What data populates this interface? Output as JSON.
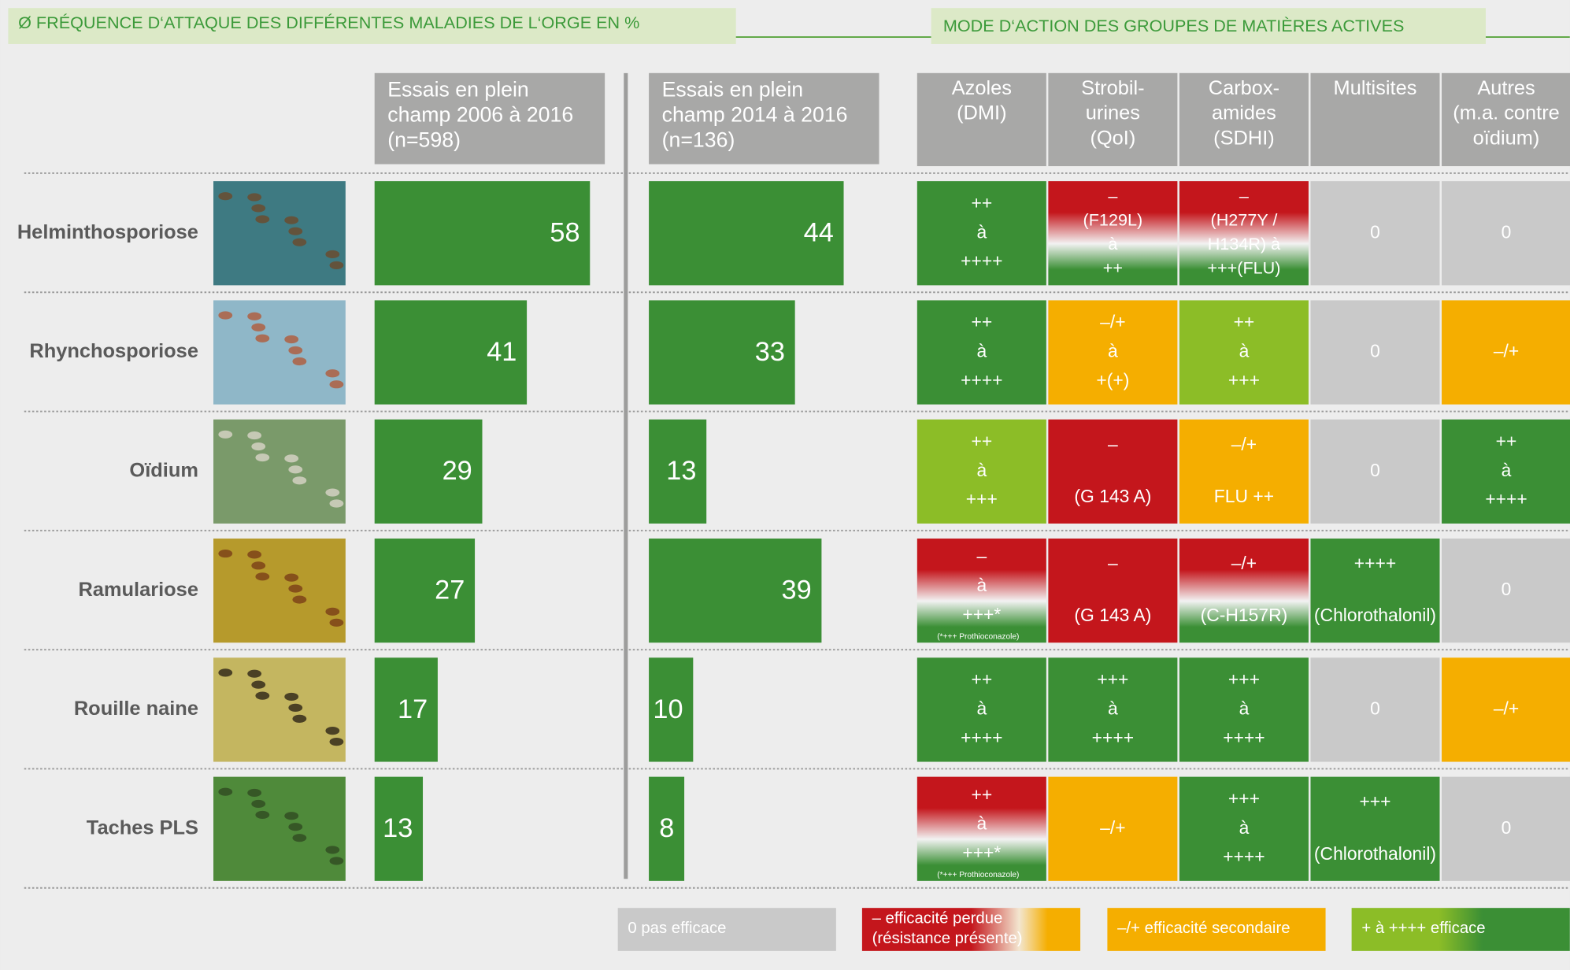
{
  "title": "Ø FRÉQUENCE D‘ATTAQUE DES DIFFÉRENTES MALADIES DE L‘ORGE EN %",
  "chart_data": [
    {
      "type": "bar",
      "title": [
        "Essais en plein",
        "champ 2006 à 2016",
        "(n=598)"
      ],
      "categories": [
        "Helminthosporiose",
        "Rhynchosporiose",
        "Oïdium",
        "Ramulariose",
        "Rouille naine",
        "Taches PLS"
      ],
      "values": [
        58,
        41,
        29,
        27,
        17,
        13
      ],
      "color": "#3b8f35",
      "xlim": [
        0,
        62
      ]
    },
    {
      "type": "bar",
      "title": [
        "Essais en plein",
        "champ 2014 à 2016",
        "(n=136)"
      ],
      "values": [
        44,
        33,
        13,
        39,
        10,
        8
      ],
      "color": "#3b8f35",
      "xlim": [
        0,
        52
      ]
    }
  ],
  "efficacy": {
    "title": "MODE D‘ACTION DES GROUPES DE MATIÈRES ACTIVES",
    "columns": [
      [
        "Azoles",
        "(DMI)"
      ],
      [
        "Strobil-",
        "urines",
        "(QoI)"
      ],
      [
        "Carbox-",
        "amides",
        "(SDHI)"
      ],
      [
        "Multisites"
      ],
      [
        "Autres",
        "(m.a. contre",
        "oïdium)"
      ]
    ],
    "rows": [
      [
        {
          "lines": [
            "++",
            "à",
            "++++"
          ],
          "color": "green"
        },
        {
          "lines": [
            "–",
            "(F129L)",
            "à",
            "++"
          ],
          "color": "red-green"
        },
        {
          "lines": [
            "–",
            "(H277Y /",
            "H134R) à",
            "+++(FLU)"
          ],
          "color": "red-green"
        },
        {
          "lines": [
            "0"
          ],
          "color": "gray"
        },
        {
          "lines": [
            "0"
          ],
          "color": "gray"
        }
      ],
      [
        {
          "lines": [
            "++",
            "à",
            "++++"
          ],
          "color": "green"
        },
        {
          "lines": [
            "–/+",
            "à",
            "+(+)"
          ],
          "color": "orange"
        },
        {
          "lines": [
            "++",
            "à",
            "+++"
          ],
          "color": "lightgreen"
        },
        {
          "lines": [
            "0"
          ],
          "color": "gray"
        },
        {
          "lines": [
            "–/+"
          ],
          "color": "orange"
        }
      ],
      [
        {
          "lines": [
            "++",
            "à",
            "+++"
          ],
          "color": "lightgreen"
        },
        {
          "lines": [
            "–",
            "(G 143 A)"
          ],
          "color": "red"
        },
        {
          "lines": [
            "–/+",
            "FLU ++"
          ],
          "color": "orange"
        },
        {
          "lines": [
            "0"
          ],
          "color": "gray"
        },
        {
          "lines": [
            "++",
            "à",
            "++++"
          ],
          "color": "green"
        }
      ],
      [
        {
          "lines": [
            "–",
            "à",
            "+++*"
          ],
          "color": "red-green",
          "note": "(*+++ Prothioconazole)"
        },
        {
          "lines": [
            "–",
            "(G 143 A)"
          ],
          "color": "red"
        },
        {
          "lines": [
            "–/+",
            "(C-H157R)"
          ],
          "color": "red-green"
        },
        {
          "lines": [
            "++++",
            "(Chlorothalonil)"
          ],
          "color": "green"
        },
        {
          "lines": [
            "0"
          ],
          "color": "gray"
        }
      ],
      [
        {
          "lines": [
            "++",
            "à",
            "++++"
          ],
          "color": "green"
        },
        {
          "lines": [
            "+++",
            "à",
            "++++"
          ],
          "color": "green"
        },
        {
          "lines": [
            "+++",
            "à",
            "++++"
          ],
          "color": "green"
        },
        {
          "lines": [
            "0"
          ],
          "color": "gray"
        },
        {
          "lines": [
            "–/+"
          ],
          "color": "orange"
        }
      ],
      [
        {
          "lines": [
            "++",
            "à",
            "+++*"
          ],
          "color": "red-green",
          "note": "(*+++ Prothioconazole)"
        },
        {
          "lines": [
            "–/+"
          ],
          "color": "orange"
        },
        {
          "lines": [
            "+++",
            "à",
            "++++"
          ],
          "color": "green"
        },
        {
          "lines": [
            "+++",
            "(Chlorothalonil)"
          ],
          "color": "green"
        },
        {
          "lines": [
            "0"
          ],
          "color": "gray"
        }
      ]
    ]
  },
  "legend": [
    {
      "lines": [
        "0   pas efficace"
      ],
      "color": "gray"
    },
    {
      "lines": [
        "–  efficacité perdue",
        "(résistance présente)"
      ],
      "color": "red-orange"
    },
    {
      "lines": [
        "–/+ efficacité secondaire"
      ],
      "color": "orange"
    },
    {
      "lines": [
        "+ à  ++++ efficace"
      ],
      "color": "lightgreen-green"
    }
  ]
}
